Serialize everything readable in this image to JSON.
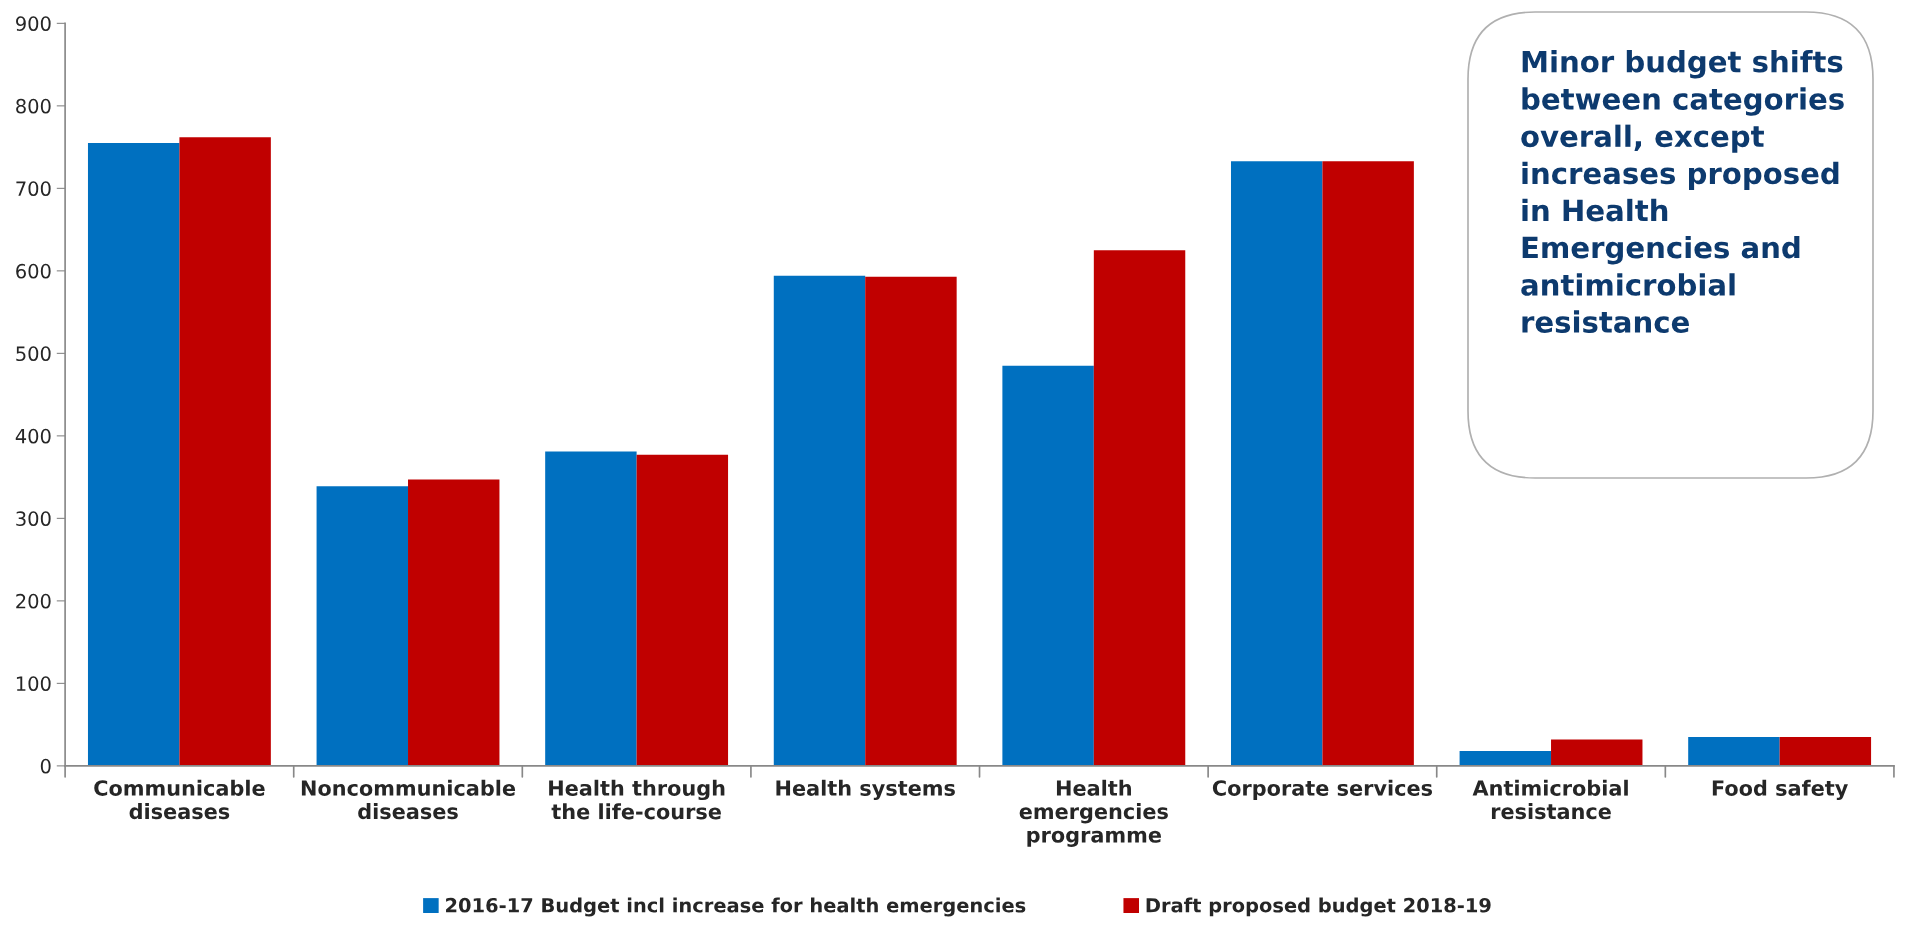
{
  "chart_data": {
    "type": "bar",
    "categories": [
      "Communicable\ndiseases",
      "Noncommunicable\ndiseases",
      "Health through\nthe life-course",
      "Health systems",
      "Health\nemergencies\nprogramme",
      "Corporate services",
      "Antimicrobial\nresistance",
      "Food safety"
    ],
    "series": [
      {
        "name": "2016-17 Budget incl increase for health emergencies",
        "color": "#0070c0",
        "values": [
          755,
          339,
          381,
          594,
          485,
          733,
          18,
          35
        ]
      },
      {
        "name": "Draft proposed budget 2018-19",
        "color": "#c00000",
        "values": [
          762,
          347,
          377,
          593,
          625,
          733,
          32,
          35
        ]
      }
    ],
    "ylim": [
      0,
      900
    ],
    "yticks": [
      0,
      100,
      200,
      300,
      400,
      500,
      600,
      700,
      800,
      900
    ],
    "annotations": [
      "Minor budget shifts between categories overall, except increases proposed in Health Emergencies and antimicrobial resistance"
    ],
    "grid": false,
    "legend": "bottom"
  }
}
